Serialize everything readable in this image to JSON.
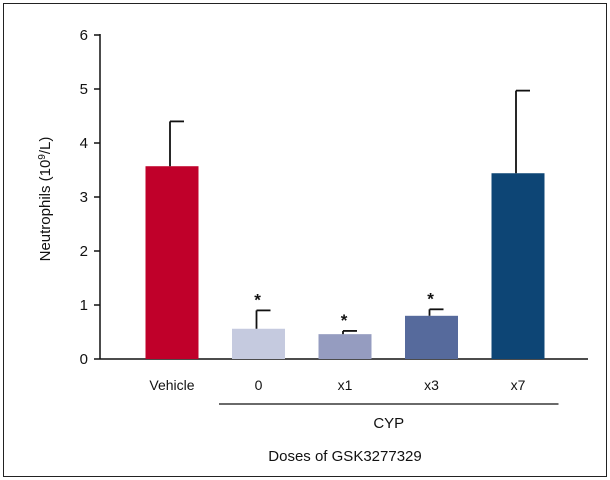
{
  "chart_data": {
    "type": "bar",
    "categories": [
      "Vehicle",
      "0",
      "x1",
      "x3",
      "x7"
    ],
    "values": [
      3.57,
      0.56,
      0.46,
      0.8,
      3.44
    ],
    "errors": [
      0.83,
      0.34,
      0.06,
      0.12,
      1.53
    ],
    "significance": [
      "",
      "*",
      "*",
      "*",
      ""
    ],
    "colors": [
      "#c0002a",
      "#c5cadf",
      "#959cc0",
      "#566a9c",
      "#0d4575"
    ],
    "ylabel_prefix": "Neutrophils (10",
    "ylabel_sup": "9",
    "ylabel_suffix": "/L)",
    "xlabel": "Doses of GSK3277329",
    "group_label": "CYP",
    "ylim": [
      0,
      6
    ],
    "yticks": [
      "0",
      "1",
      "2",
      "3",
      "4",
      "5",
      "6"
    ],
    "grid": false,
    "legend": "none"
  }
}
